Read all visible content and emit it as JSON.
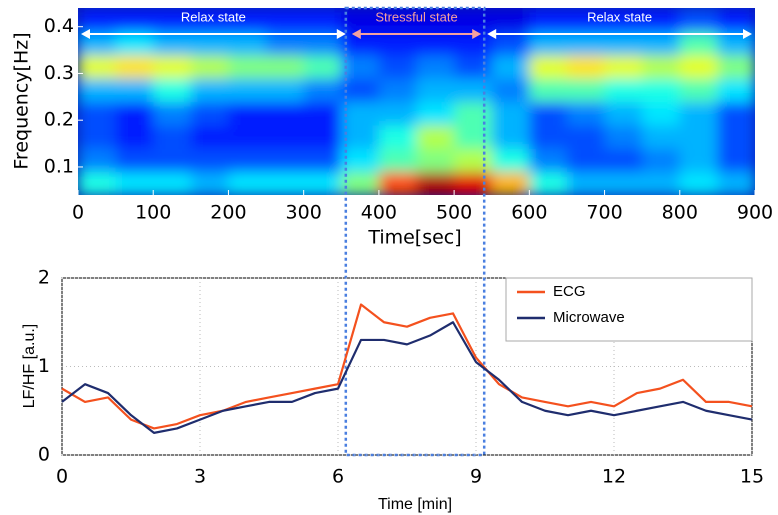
{
  "chart_data": [
    {
      "type": "heatmap",
      "colormap": "jet",
      "zlim": [
        0,
        1
      ],
      "xbins": [
        0,
        50,
        100,
        150,
        200,
        250,
        300,
        350,
        400,
        450,
        500,
        550,
        600,
        650,
        700,
        750,
        800,
        850,
        900
      ],
      "ybins": [
        0.04,
        0.09,
        0.14,
        0.19,
        0.24,
        0.29,
        0.34,
        0.39,
        0.44
      ],
      "values": [
        [
          0.4,
          0.35,
          0.35,
          0.3,
          0.35,
          0.35,
          0.35,
          0.5,
          0.8,
          0.95,
          0.9,
          0.7,
          0.4,
          0.3,
          0.3,
          0.3,
          0.35,
          0.3
        ],
        [
          0.25,
          0.2,
          0.2,
          0.2,
          0.2,
          0.2,
          0.2,
          0.35,
          0.45,
          0.5,
          0.55,
          0.4,
          0.25,
          0.2,
          0.2,
          0.25,
          0.3,
          0.2
        ],
        [
          0.2,
          0.15,
          0.2,
          0.15,
          0.15,
          0.15,
          0.15,
          0.3,
          0.4,
          0.55,
          0.45,
          0.3,
          0.2,
          0.2,
          0.25,
          0.3,
          0.3,
          0.2
        ],
        [
          0.2,
          0.15,
          0.25,
          0.2,
          0.15,
          0.15,
          0.15,
          0.3,
          0.3,
          0.35,
          0.45,
          0.3,
          0.2,
          0.25,
          0.3,
          0.35,
          0.3,
          0.2
        ],
        [
          0.3,
          0.3,
          0.4,
          0.3,
          0.3,
          0.3,
          0.25,
          0.2,
          0.25,
          0.3,
          0.3,
          0.25,
          0.45,
          0.45,
          0.4,
          0.4,
          0.45,
          0.35
        ],
        [
          0.6,
          0.65,
          0.6,
          0.55,
          0.5,
          0.5,
          0.45,
          0.25,
          0.2,
          0.25,
          0.2,
          0.3,
          0.6,
          0.65,
          0.6,
          0.55,
          0.6,
          0.5
        ],
        [
          0.3,
          0.35,
          0.3,
          0.3,
          0.3,
          0.25,
          0.25,
          0.15,
          0.15,
          0.15,
          0.15,
          0.2,
          0.3,
          0.3,
          0.3,
          0.3,
          0.45,
          0.3
        ],
        [
          0.15,
          0.15,
          0.15,
          0.15,
          0.15,
          0.15,
          0.15,
          0.1,
          0.1,
          0.1,
          0.1,
          0.1,
          0.15,
          0.15,
          0.15,
          0.15,
          0.2,
          0.15
        ]
      ],
      "xlim": [
        0,
        900
      ],
      "xticks": [
        0,
        100,
        200,
        300,
        400,
        500,
        600,
        700,
        800,
        900
      ],
      "ylim": [
        0.04,
        0.44
      ],
      "yticks": [
        0.1,
        0.2,
        0.3,
        0.4
      ],
      "xlabel": "Time[sec]",
      "ylabel": "Frequency[Hz]",
      "annotations": [
        {
          "text": "Relax state",
          "start": 0,
          "end": 360,
          "color": "#ffffff"
        },
        {
          "text": "Stressful state",
          "start": 360,
          "end": 540,
          "color": "#f4a0a0"
        },
        {
          "text": "Relax state",
          "start": 540,
          "end": 900,
          "color": "#ffffff"
        }
      ]
    },
    {
      "type": "line",
      "x": [
        0,
        0.5,
        1,
        1.5,
        2,
        2.5,
        3,
        3.5,
        4,
        4.5,
        5,
        5.5,
        6,
        6.5,
        7,
        7.5,
        8,
        8.5,
        9,
        9.5,
        10,
        10.5,
        11,
        11.5,
        12,
        12.5,
        13,
        13.5,
        14,
        14.5,
        15
      ],
      "series": [
        {
          "name": "ECG",
          "color": "#f4511e",
          "values": [
            0.75,
            0.6,
            0.65,
            0.4,
            0.3,
            0.35,
            0.45,
            0.5,
            0.6,
            0.65,
            0.7,
            0.75,
            0.8,
            1.7,
            1.5,
            1.45,
            1.55,
            1.6,
            1.1,
            0.8,
            0.65,
            0.6,
            0.55,
            0.6,
            0.55,
            0.7,
            0.75,
            0.85,
            0.6,
            0.6,
            0.55
          ]
        },
        {
          "name": "Microwave",
          "color": "#1f2d6e",
          "values": [
            0.6,
            0.8,
            0.7,
            0.45,
            0.25,
            0.3,
            0.4,
            0.5,
            0.55,
            0.6,
            0.6,
            0.7,
            0.75,
            1.3,
            1.3,
            1.25,
            1.35,
            1.5,
            1.05,
            0.85,
            0.6,
            0.5,
            0.45,
            0.5,
            0.45,
            0.5,
            0.55,
            0.6,
            0.5,
            0.45,
            0.4
          ]
        }
      ],
      "xlim": [
        0,
        15
      ],
      "xticks": [
        0,
        3,
        6,
        9,
        12,
        15
      ],
      "ylim": [
        0,
        2
      ],
      "yticks": [
        0,
        1,
        2
      ],
      "xlabel": "Time [min]",
      "ylabel": "LF/HF [a.u.]",
      "grid": true,
      "legend": "upper right"
    }
  ]
}
